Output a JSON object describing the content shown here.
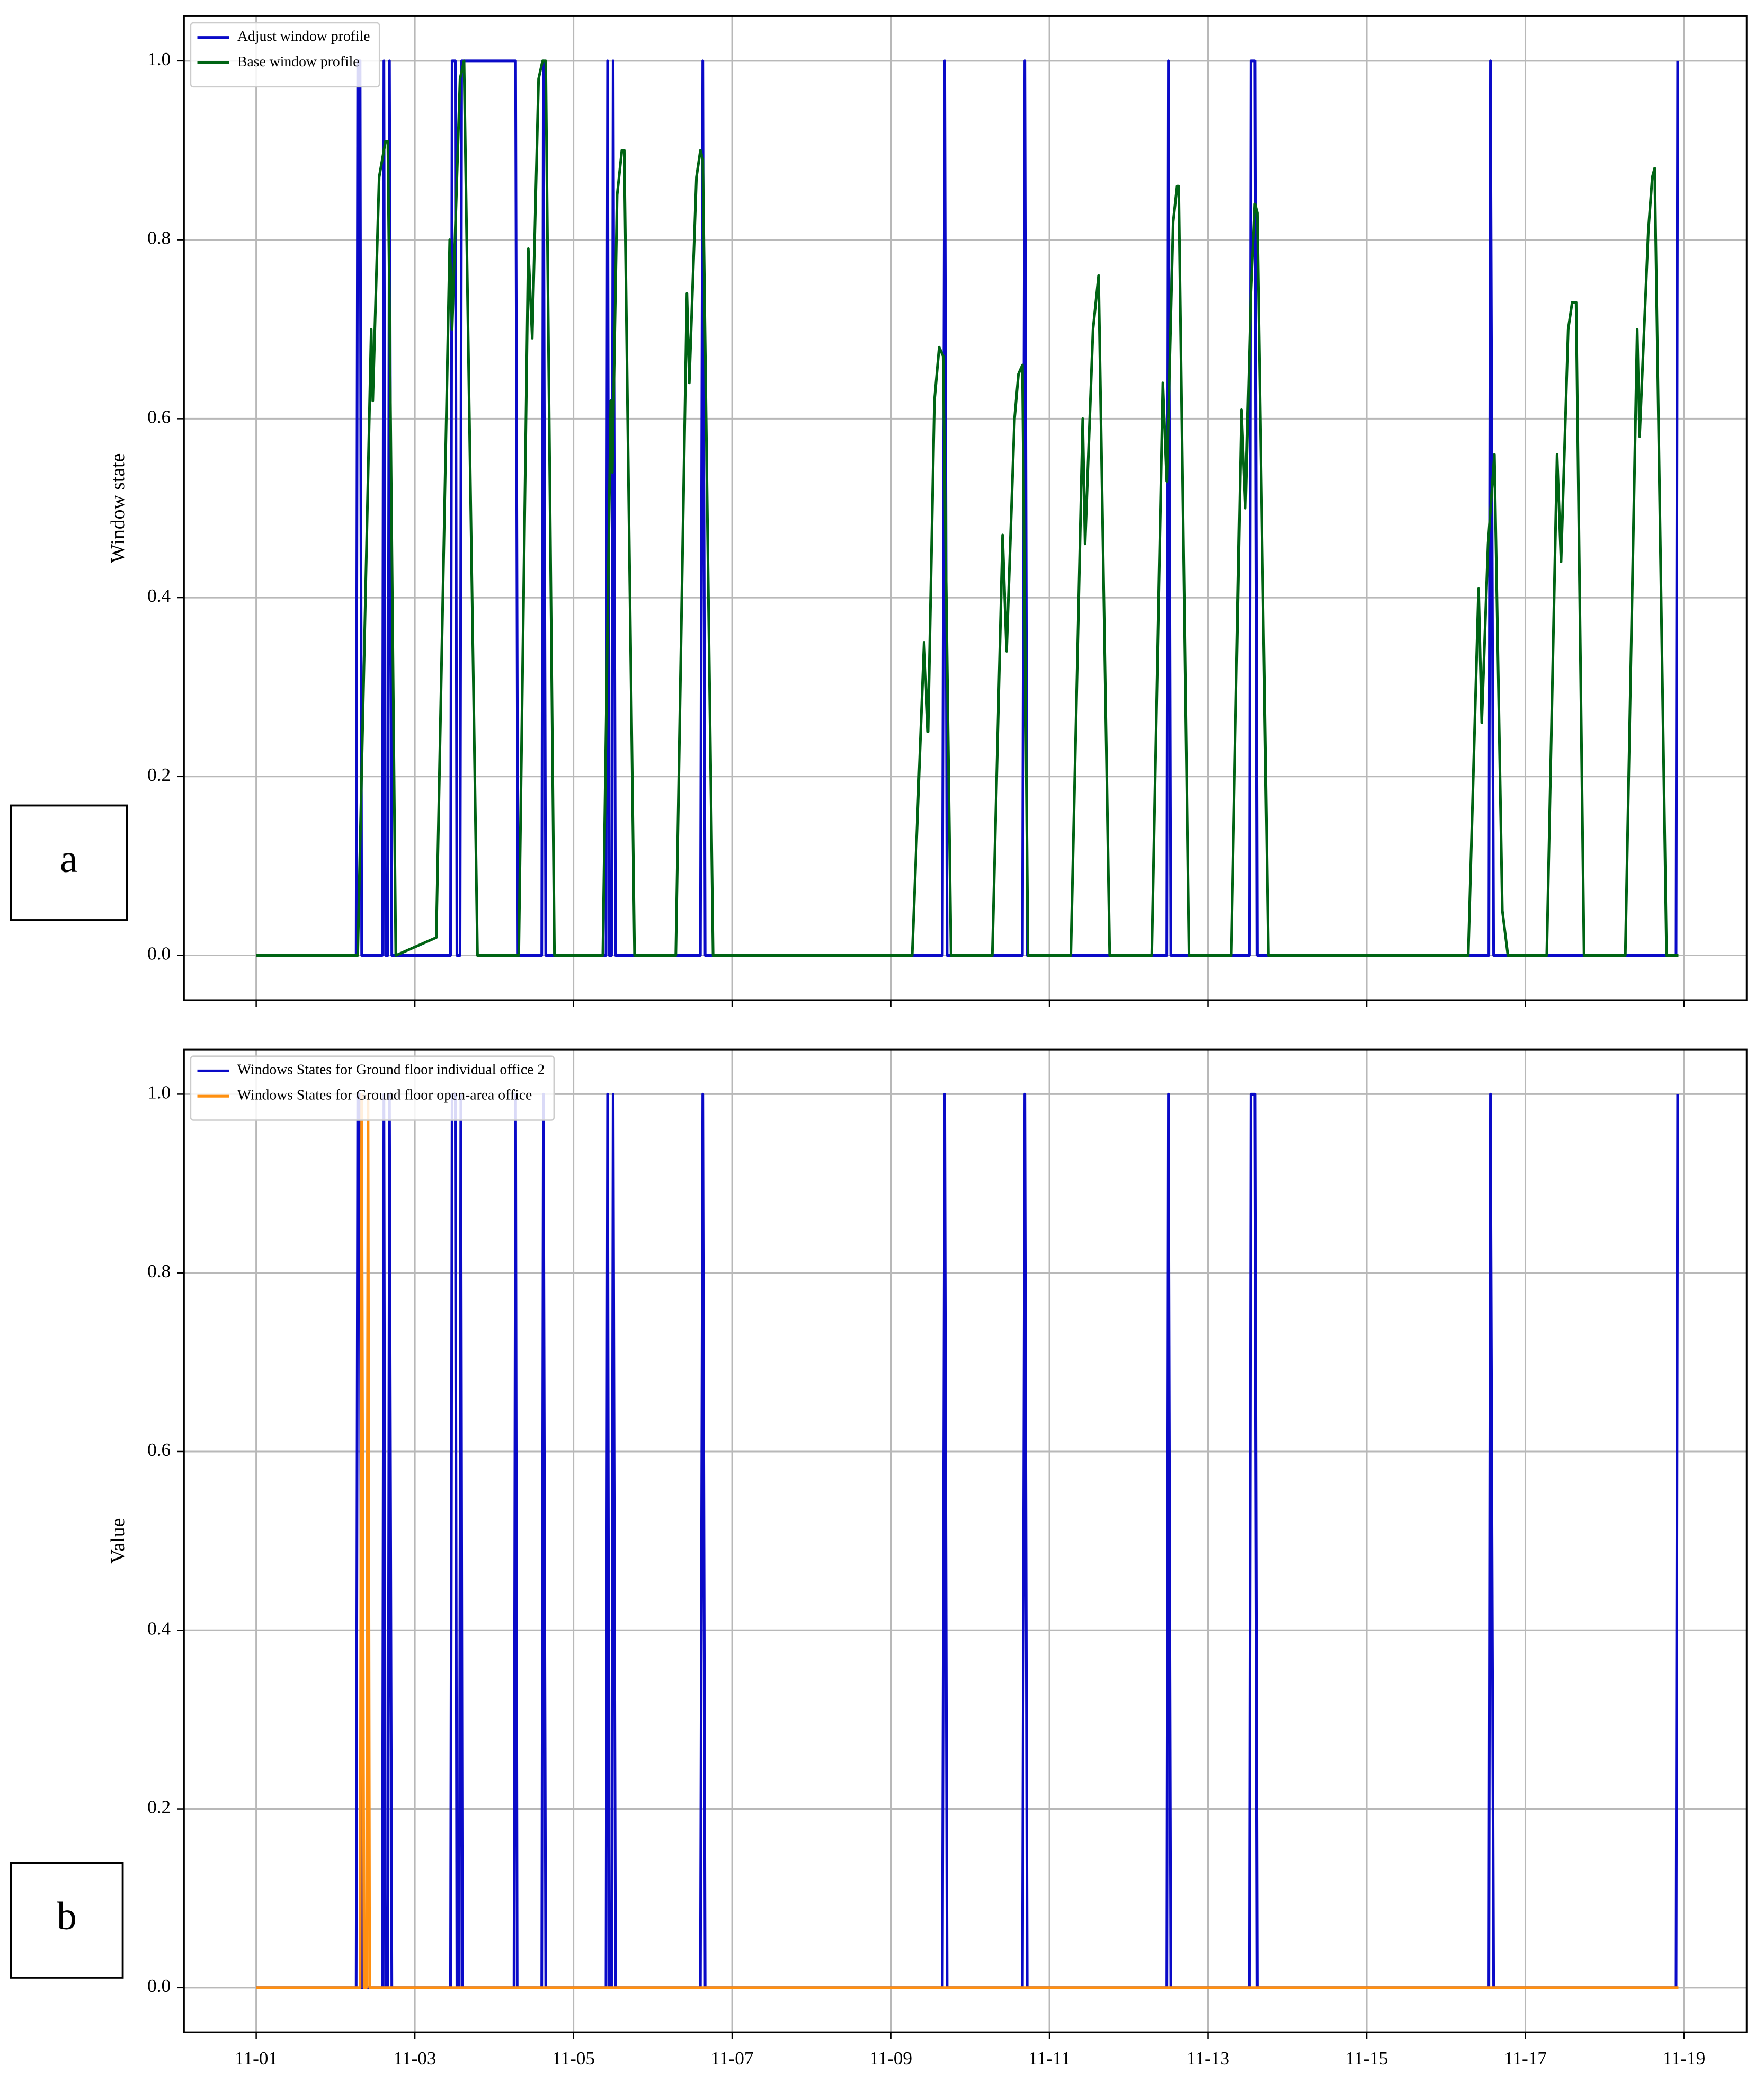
{
  "chart_data": [
    {
      "type": "line",
      "panel_label": "a",
      "ylabel": "Window state",
      "grid": true,
      "legend": "upper left",
      "xlim": [
        0.09,
        19.79
      ],
      "ylim": [
        -0.05,
        1.05
      ],
      "show_xtick_labels": false,
      "xticks": [
        1,
        3,
        5,
        7,
        9,
        11,
        13,
        15,
        17,
        19
      ],
      "yticks": [
        {
          "value": 0,
          "label": "0.0"
        },
        0.2,
        0.4,
        0.6,
        0.8,
        {
          "value": 1,
          "label": "1.0"
        }
      ],
      "series": [
        {
          "name": "Adjust window profile",
          "color": "#0a0ac8",
          "x": [
            1.0,
            2.26,
            2.28,
            2.31,
            2.33,
            2.59,
            2.61,
            2.63,
            2.66,
            2.68,
            2.71,
            3.45,
            3.47,
            3.51,
            3.53,
            3.57,
            3.59,
            4.27,
            4.3,
            4.6,
            4.62,
            4.65,
            5.41,
            5.43,
            5.45,
            5.48,
            5.5,
            5.53,
            6.6,
            6.63,
            6.66,
            9.65,
            9.68,
            9.71,
            10.66,
            10.69,
            10.72,
            12.48,
            12.5,
            12.53,
            13.52,
            13.54,
            13.59,
            13.62,
            16.54,
            16.56,
            16.6,
            18.9,
            18.92
          ],
          "values": [
            0,
            0,
            1,
            1,
            0,
            0,
            1,
            0,
            0,
            1,
            0,
            0,
            1,
            1,
            0,
            0,
            1,
            1,
            0,
            0,
            1,
            0,
            0,
            1,
            0,
            0,
            1,
            0,
            0,
            1,
            0,
            0,
            1,
            0,
            0,
            1,
            0,
            0,
            1,
            0,
            0,
            1,
            1,
            0,
            0,
            1,
            0,
            0,
            1
          ]
        },
        {
          "name": "Base window profile",
          "color": "#006414",
          "x": [
            1.0,
            2.28,
            2.45,
            2.47,
            2.55,
            2.63,
            2.66,
            2.76,
            3.27,
            3.44,
            3.47,
            3.57,
            3.62,
            3.79,
            4.31,
            4.43,
            4.48,
            4.56,
            4.61,
            4.65,
            4.76,
            5.37,
            5.47,
            5.49,
            5.55,
            5.61,
            5.64,
            5.77,
            6.29,
            6.43,
            6.46,
            6.55,
            6.6,
            6.63,
            6.76,
            9.27,
            9.42,
            9.47,
            9.55,
            9.61,
            9.66,
            9.76,
            10.28,
            10.41,
            10.46,
            10.56,
            10.61,
            10.66,
            10.73,
            11.27,
            11.42,
            11.45,
            11.55,
            11.62,
            11.76,
            12.29,
            12.43,
            12.48,
            12.56,
            12.61,
            12.63,
            12.76,
            13.29,
            13.42,
            13.47,
            13.54,
            13.59,
            13.62,
            13.76,
            16.28,
            16.41,
            16.45,
            16.53,
            16.61,
            16.71,
            16.78,
            17.27,
            17.4,
            17.45,
            17.54,
            17.59,
            17.64,
            17.74,
            18.26,
            18.41,
            18.44,
            18.55,
            18.6,
            18.63,
            18.78,
            18.93
          ],
          "values": [
            0,
            0,
            0.7,
            0.62,
            0.87,
            0.91,
            0.91,
            0,
            0.02,
            0.8,
            0.7,
            0.98,
            1.0,
            0,
            0,
            0.79,
            0.69,
            0.98,
            1.0,
            1.0,
            0,
            0,
            0.62,
            0.54,
            0.85,
            0.9,
            0.9,
            0,
            0,
            0.74,
            0.64,
            0.87,
            0.9,
            0.89,
            0,
            0,
            0.35,
            0.25,
            0.62,
            0.68,
            0.67,
            0,
            0,
            0.47,
            0.34,
            0.6,
            0.65,
            0.66,
            0,
            0,
            0.6,
            0.46,
            0.7,
            0.76,
            0,
            0,
            0.64,
            0.53,
            0.82,
            0.86,
            0.86,
            0,
            0,
            0.61,
            0.5,
            0.74,
            0.84,
            0.83,
            0,
            0,
            0.41,
            0.26,
            0.46,
            0.56,
            0.05,
            0,
            0,
            0.56,
            0.44,
            0.7,
            0.73,
            0.73,
            0,
            0,
            0.7,
            0.58,
            0.81,
            0.87,
            0.88,
            0,
            0
          ]
        }
      ]
    },
    {
      "type": "line",
      "panel_label": "b",
      "ylabel": "Value",
      "grid": true,
      "legend": "upper left",
      "xlim": [
        0.09,
        19.79
      ],
      "ylim": [
        -0.05,
        1.05
      ],
      "show_xtick_labels": true,
      "xticks": [
        {
          "value": 1,
          "label": "11-01"
        },
        {
          "value": 3,
          "label": "11-03"
        },
        {
          "value": 5,
          "label": "11-05"
        },
        {
          "value": 7,
          "label": "11-07"
        },
        {
          "value": 9,
          "label": "11-09"
        },
        {
          "value": 11,
          "label": "11-11"
        },
        {
          "value": 13,
          "label": "11-13"
        },
        {
          "value": 15,
          "label": "11-15"
        },
        {
          "value": 17,
          "label": "11-17"
        },
        {
          "value": 19,
          "label": "11-19"
        }
      ],
      "yticks": [
        {
          "value": 0,
          "label": "0.0"
        },
        0.2,
        0.4,
        0.6,
        0.8,
        {
          "value": 1,
          "label": "1.0"
        }
      ],
      "series": [
        {
          "name": "Windows States for Ground floor individual office 2",
          "color": "#0a0ac8",
          "x": [
            1.0,
            2.26,
            2.28,
            2.31,
            2.33,
            2.59,
            2.61,
            2.63,
            2.66,
            2.68,
            2.71,
            3.45,
            3.47,
            3.51,
            3.53,
            3.56,
            3.58,
            3.6,
            4.25,
            4.27,
            4.29,
            4.6,
            4.62,
            4.65,
            5.41,
            5.43,
            5.45,
            5.48,
            5.5,
            5.53,
            6.6,
            6.63,
            6.66,
            9.65,
            9.68,
            9.71,
            10.66,
            10.69,
            10.72,
            12.48,
            12.5,
            12.53,
            13.52,
            13.54,
            13.59,
            13.62,
            16.54,
            16.56,
            16.6,
            18.9,
            18.92
          ],
          "values": [
            0,
            0,
            1,
            1,
            0,
            0,
            1,
            0,
            0,
            1,
            0,
            0,
            1,
            1,
            0,
            0,
            1,
            0,
            0,
            1,
            0,
            0,
            1,
            0,
            0,
            1,
            0,
            0,
            1,
            0,
            0,
            1,
            0,
            0,
            1,
            0,
            0,
            1,
            0,
            0,
            1,
            0,
            0,
            1,
            1,
            0,
            0,
            1,
            0,
            0,
            1
          ]
        },
        {
          "name": "Windows States for Ground floor open-area office",
          "color": "#ff9010",
          "x": [
            1.0,
            2.31,
            2.33,
            2.36,
            2.39,
            2.41,
            2.43,
            18.93
          ],
          "values": [
            0,
            0,
            1,
            0,
            0,
            1,
            0,
            0
          ]
        }
      ]
    }
  ]
}
